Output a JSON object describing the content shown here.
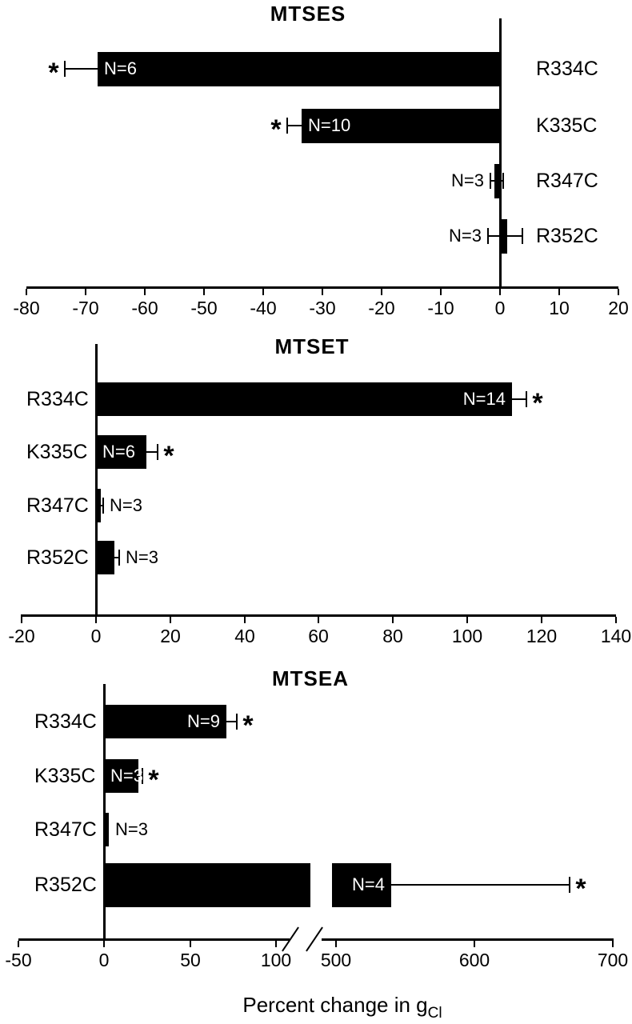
{
  "figure": {
    "xlabel_main": "Percent change in g",
    "xlabel_sub": "Cl",
    "background_color": "#ffffff",
    "ink_color": "#000000",
    "bar_color": "#000000"
  },
  "chart_data": [
    {
      "type": "bar",
      "orientation": "horizontal",
      "title": "MTSES",
      "categories": [
        "R334C",
        "K335C",
        "R347C",
        "R352C"
      ],
      "values": [
        -68,
        -33.5,
        -1,
        1.2
      ],
      "n_labels": [
        "N=6",
        "N=10",
        "N=3",
        "N=3"
      ],
      "significant": [
        true,
        true,
        false,
        false
      ],
      "errors": [
        {
          "line": [
            -73.5,
            -68
          ],
          "caps": [
            -73.5
          ]
        },
        {
          "line": [
            -36,
            -33.5
          ],
          "caps": [
            -36
          ]
        },
        {
          "line": [
            -1.6,
            0.5
          ],
          "caps": [
            -1.6,
            0.5
          ]
        },
        {
          "line": [
            -2,
            3.8
          ],
          "caps": [
            -2,
            3.8
          ]
        }
      ],
      "x_ticks": [
        -80,
        -70,
        -60,
        -50,
        -40,
        -30,
        -20,
        -10,
        0,
        10,
        20
      ],
      "xlim": [
        -80,
        20
      ],
      "grid": false,
      "category_label_side": "right",
      "n_styles": [
        "in-far",
        "in-far",
        "out-left",
        "out-left"
      ]
    },
    {
      "type": "bar",
      "orientation": "horizontal",
      "title": "MTSET",
      "categories": [
        "R334C",
        "K335C",
        "R347C",
        "R352C"
      ],
      "values": [
        112,
        13.5,
        1.2,
        5
      ],
      "n_labels": [
        "N=14",
        "N=6",
        "N=3",
        "N=3"
      ],
      "significant": [
        true,
        true,
        false,
        false
      ],
      "errors": [
        {
          "line": [
            112,
            116
          ],
          "caps": [
            116
          ]
        },
        {
          "line": [
            13.5,
            16.6
          ],
          "caps": [
            16.6
          ]
        },
        {
          "line": [
            0.4,
            1.9
          ],
          "caps": [
            1.9
          ]
        },
        {
          "line": [
            5,
            6.3
          ],
          "caps": [
            6.3
          ]
        }
      ],
      "x_ticks": [
        -20,
        0,
        20,
        40,
        60,
        80,
        100,
        120,
        140
      ],
      "xlim": [
        -20,
        140
      ],
      "grid": false,
      "category_label_side": "left",
      "n_styles": [
        "in-far",
        "in-near",
        "out-right",
        "out-right"
      ]
    },
    {
      "type": "bar",
      "orientation": "horizontal",
      "title": "MTSEA",
      "categories": [
        "R334C",
        "K335C",
        "R347C",
        "R352C"
      ],
      "values": [
        71,
        20,
        3,
        540
      ],
      "n_labels": [
        "N=9",
        "N=3",
        "N=3",
        "N=4"
      ],
      "significant": [
        true,
        true,
        false,
        true
      ],
      "errors": [
        {
          "line": [
            71,
            77
          ],
          "caps": [
            77
          ]
        },
        {
          "line": [
            20,
            22.5
          ],
          "caps": [
            22.5
          ]
        },
        null,
        {
          "line": [
            540,
            669
          ],
          "caps": [
            669
          ]
        }
      ],
      "x_ticks": [
        -50,
        0,
        50,
        100,
        500,
        600,
        700
      ],
      "xlim": [
        -50,
        700
      ],
      "grid": false,
      "axis_break": {
        "between": [
          115,
          490
        ]
      },
      "category_label_side": "left",
      "n_styles": [
        "in-far",
        "in-near",
        "out-right",
        "in-far"
      ]
    }
  ]
}
